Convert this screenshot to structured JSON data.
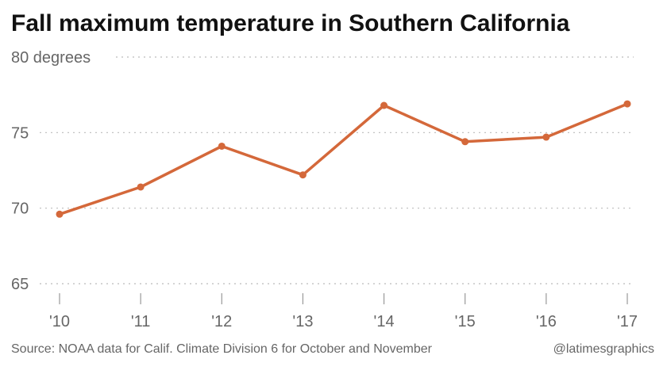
{
  "title": "Fall maximum temperature in Southern California",
  "source": "Source: NOAA data for Calif. Climate Division 6 for October and November",
  "credit": "@latimesgraphics",
  "colors": {
    "line": "#d4683a",
    "grid": "#bbbbbb",
    "tick": "#999999",
    "text": "#666666",
    "title": "#111111"
  },
  "chart_data": {
    "type": "line",
    "title": "Fall maximum temperature in Southern California",
    "xlabel": "",
    "ylabel": "",
    "categories": [
      "'10",
      "'11",
      "'12",
      "'13",
      "'14",
      "'15",
      "'16",
      "'17"
    ],
    "series": [
      {
        "values": [
          69.6,
          71.4,
          74.1,
          72.2,
          76.8,
          74.4,
          74.7,
          76.9
        ]
      }
    ],
    "ylim": [
      65,
      80
    ],
    "yticks": [
      {
        "value": 80,
        "label": "80 degrees"
      },
      {
        "value": 75,
        "label": "75"
      },
      {
        "value": 70,
        "label": "70"
      },
      {
        "value": 65,
        "label": "65"
      }
    ],
    "grid": true,
    "grid_style": "dotted",
    "markers": true
  }
}
